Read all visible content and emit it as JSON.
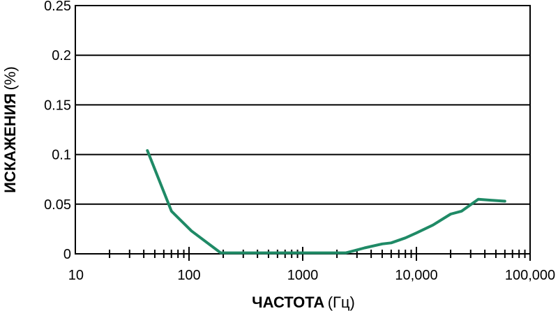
{
  "chart_data": {
    "type": "line",
    "x_scale": "log",
    "xlim": [
      10,
      100000
    ],
    "ylim": [
      0,
      0.25
    ],
    "grid": "horizontal",
    "x_ticks": [
      "10",
      "100",
      "1000",
      "10,000",
      "100,000"
    ],
    "y_ticks": [
      "0",
      "0.05",
      "0.1",
      "0.15",
      "0.2",
      "0.25"
    ],
    "xlabel_bold": "ЧАСТОТА",
    "xlabel_unit": "(Гц)",
    "ylabel_bold": "ИСКАЖЕНИЯ",
    "ylabel_unit": "(%)",
    "line_color": "#1f8a66",
    "series": [
      {
        "x": [
          43,
          70,
          105,
          190,
          500,
          1000,
          2400,
          3500,
          5000,
          6000,
          8000,
          10000,
          14000,
          20000,
          25000,
          35000,
          45000,
          60000
        ],
        "y": [
          0.104,
          0.043,
          0.023,
          0.001,
          0.001,
          0.001,
          0.001,
          0.006,
          0.01,
          0.011,
          0.016,
          0.021,
          0.029,
          0.04,
          0.043,
          0.055,
          0.054,
          0.053
        ]
      }
    ]
  }
}
